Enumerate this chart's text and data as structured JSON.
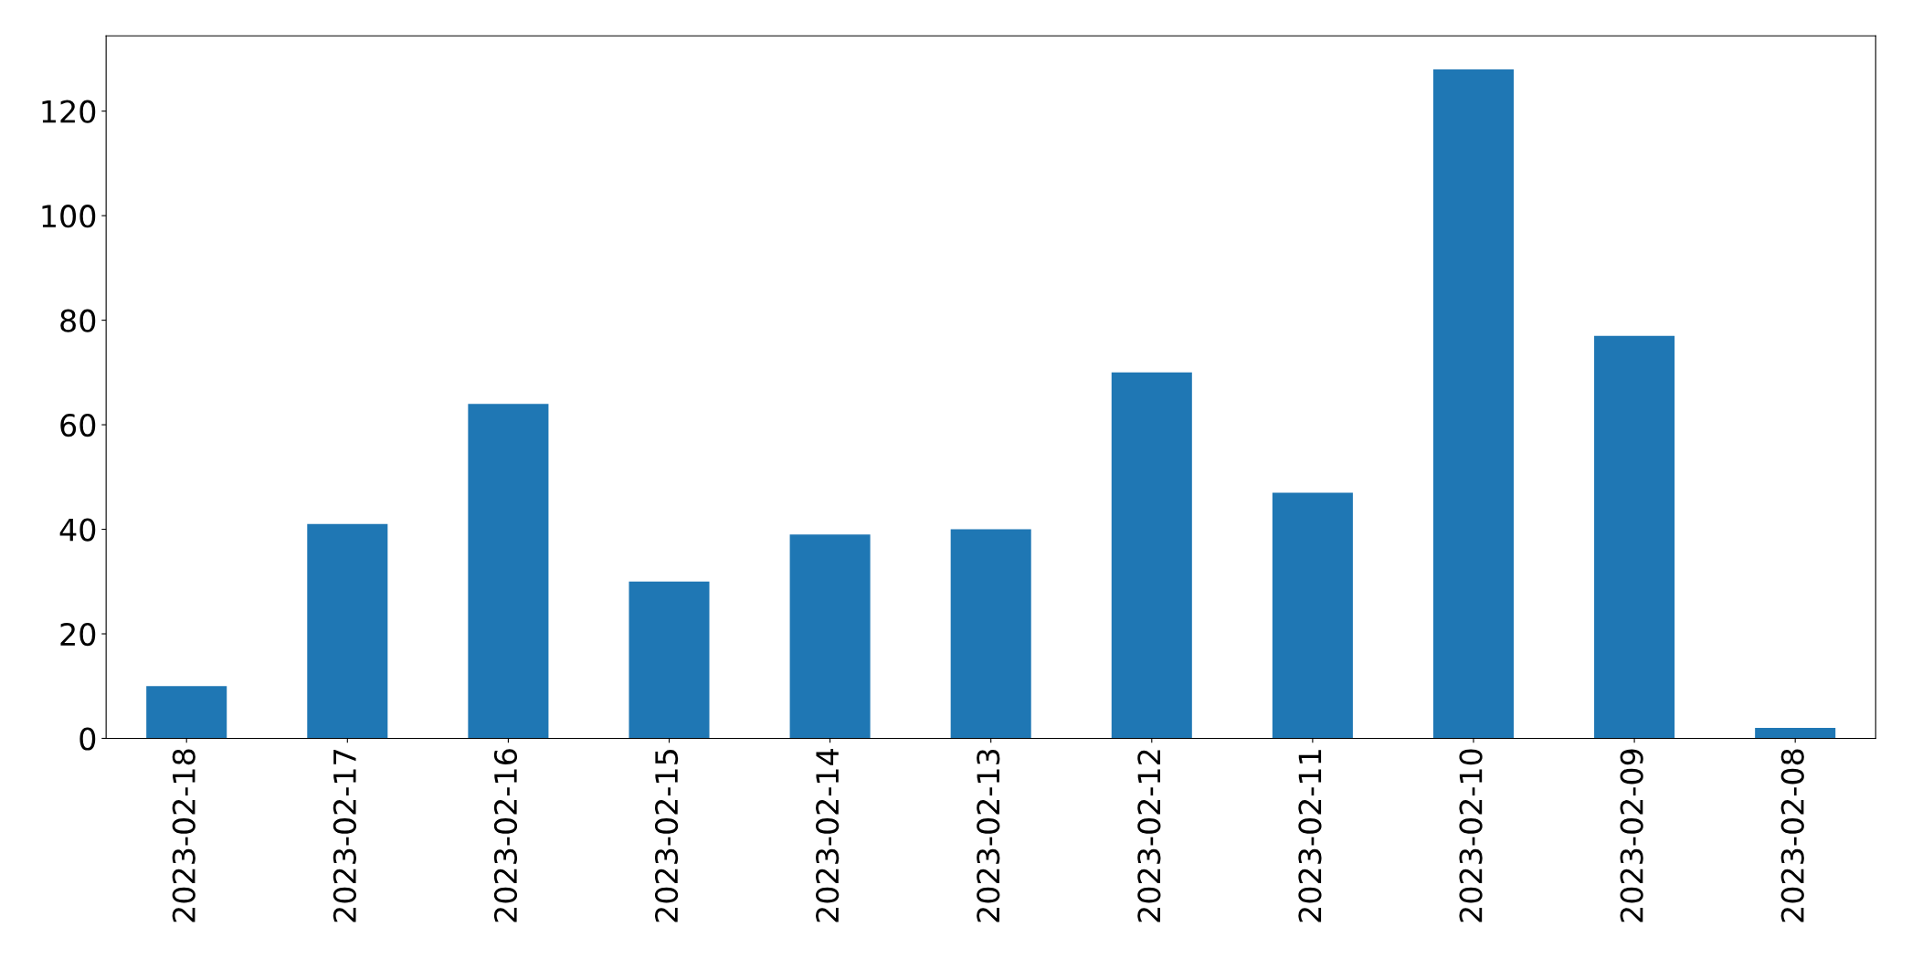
{
  "chart_data": {
    "type": "bar",
    "categories": [
      "2023-02-18",
      "2023-02-17",
      "2023-02-16",
      "2023-02-15",
      "2023-02-14",
      "2023-02-13",
      "2023-02-12",
      "2023-02-11",
      "2023-02-10",
      "2023-02-09",
      "2023-02-08"
    ],
    "values": [
      10,
      41,
      64,
      30,
      39,
      40,
      70,
      47,
      128,
      77,
      2
    ],
    "color": "#1f77b4",
    "ylim": [
      0,
      134.4
    ],
    "yticks": [
      0,
      20,
      40,
      60,
      80,
      100,
      120
    ],
    "grid": false
  }
}
